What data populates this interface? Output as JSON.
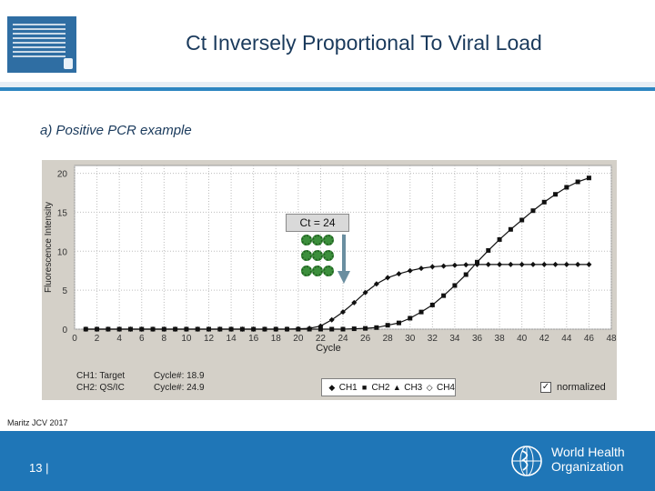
{
  "slide": {
    "title": "Ct Inversely Proportional To Viral Load",
    "subtitle": "a) Positive PCR example",
    "citation": "Maritz JCV 2017",
    "page_number": "13 |",
    "org_name_line1": "World Health",
    "org_name_line2": "Organization",
    "accent_color": "#2e86c1",
    "footer_color": "#1f76b7"
  },
  "annotation": {
    "ct_label": "Ct = 24",
    "virus_count": 9
  },
  "chart_data": {
    "type": "line",
    "title": "",
    "xlabel": "Cycle",
    "ylabel": "Fluorescence Intensity",
    "xlim": [
      0,
      48
    ],
    "ylim": [
      0,
      21
    ],
    "x_ticks": [
      "0",
      "2",
      "4",
      "6",
      "8",
      "10",
      "12",
      "14",
      "16",
      "18",
      "20",
      "22",
      "24",
      "26",
      "28",
      "30",
      "32",
      "34",
      "36",
      "38",
      "40",
      "42",
      "44",
      "46",
      "48"
    ],
    "y_ticks": [
      "0",
      "5",
      "10",
      "15",
      "20"
    ],
    "series": [
      {
        "name": "CH1",
        "marker": "diamond",
        "x": [
          1,
          2,
          3,
          4,
          5,
          6,
          7,
          8,
          9,
          10,
          11,
          12,
          13,
          14,
          15,
          16,
          17,
          18,
          19,
          20,
          21,
          22,
          23,
          24,
          25,
          26,
          27,
          28,
          29,
          30,
          31,
          32,
          33,
          34,
          35,
          36,
          37,
          38,
          39,
          40,
          41,
          42,
          43,
          44,
          45,
          46
        ],
        "values": [
          0,
          0,
          0,
          0,
          0,
          0,
          0,
          0,
          0,
          0,
          0,
          0,
          0,
          0,
          0,
          0,
          0,
          0,
          0,
          0.05,
          0.1,
          0.4,
          1.2,
          2.2,
          3.4,
          4.7,
          5.8,
          6.6,
          7.1,
          7.5,
          7.8,
          8.0,
          8.1,
          8.2,
          8.25,
          8.3,
          8.3,
          8.3,
          8.3,
          8.3,
          8.3,
          8.3,
          8.3,
          8.3,
          8.3,
          8.3
        ]
      },
      {
        "name": "CH2",
        "marker": "square",
        "x": [
          1,
          2,
          3,
          4,
          5,
          6,
          7,
          8,
          9,
          10,
          11,
          12,
          13,
          14,
          15,
          16,
          17,
          18,
          19,
          20,
          21,
          22,
          23,
          24,
          25,
          26,
          27,
          28,
          29,
          30,
          31,
          32,
          33,
          34,
          35,
          36,
          37,
          38,
          39,
          40,
          41,
          42,
          43,
          44,
          45,
          46
        ],
        "values": [
          0,
          0,
          0,
          0,
          0,
          0,
          0,
          0,
          0,
          0,
          0,
          0,
          0,
          0,
          0,
          0,
          0,
          0,
          0,
          0,
          0,
          0,
          0,
          0,
          0.05,
          0.1,
          0.2,
          0.5,
          0.8,
          1.4,
          2.2,
          3.1,
          4.3,
          5.6,
          7.0,
          8.6,
          10.1,
          11.5,
          12.8,
          14.0,
          15.2,
          16.3,
          17.3,
          18.2,
          18.9,
          19.4
        ]
      }
    ],
    "legend": [
      "CH1",
      "CH2",
      "CH3",
      "CH4"
    ],
    "legend_label_normalized": "normalized",
    "info": {
      "ch1_label": "CH1: Target",
      "ch2_label": "CH2: QS/IC",
      "ch1_cycle": "Cycle#: 18.9",
      "ch2_cycle": "Cycle#: 24.9"
    },
    "grid": true
  }
}
